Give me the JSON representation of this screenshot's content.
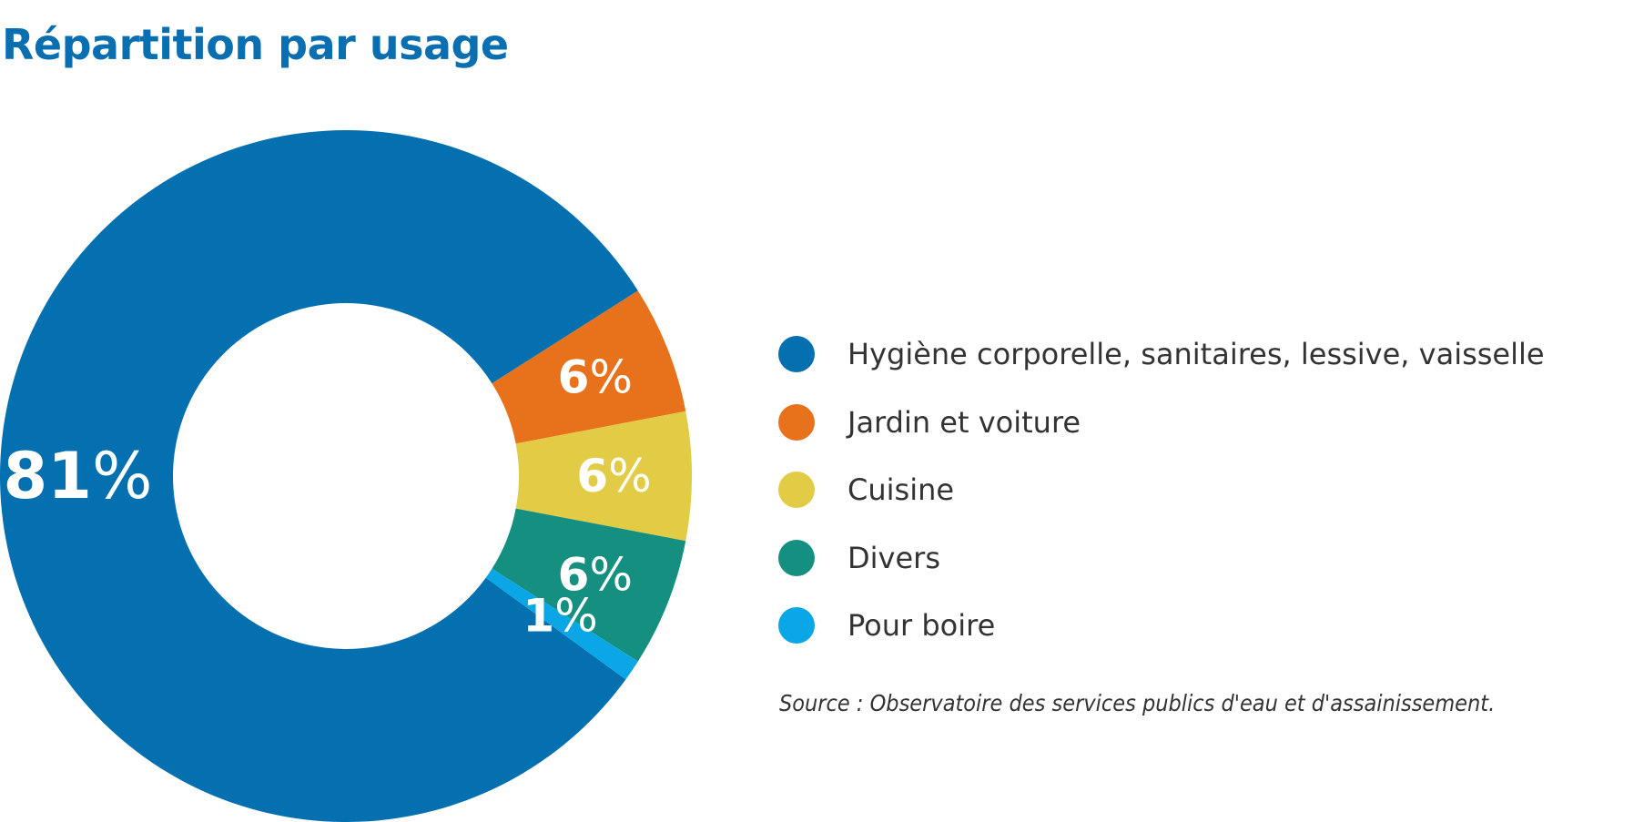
{
  "chart_data": {
    "type": "pie",
    "variant": "donut",
    "title": "Répartition par usage",
    "categories": [
      "Hygiène corporelle, sanitaires, lessive, vaisselle",
      "Jardin et voiture",
      "Cuisine",
      "Divers",
      "Pour boire"
    ],
    "values": [
      81,
      6,
      6,
      6,
      1
    ],
    "data_labels": [
      "81",
      "6",
      "6",
      "6",
      "1"
    ],
    "percent_symbol": "%",
    "colors": [
      "#0570b0",
      "#e8721c",
      "#e3cc45",
      "#148f80",
      "#0aa6e6"
    ],
    "legend_position": "right"
  },
  "source": "Source : Observatoire des services publics d'eau et d'assainissement."
}
